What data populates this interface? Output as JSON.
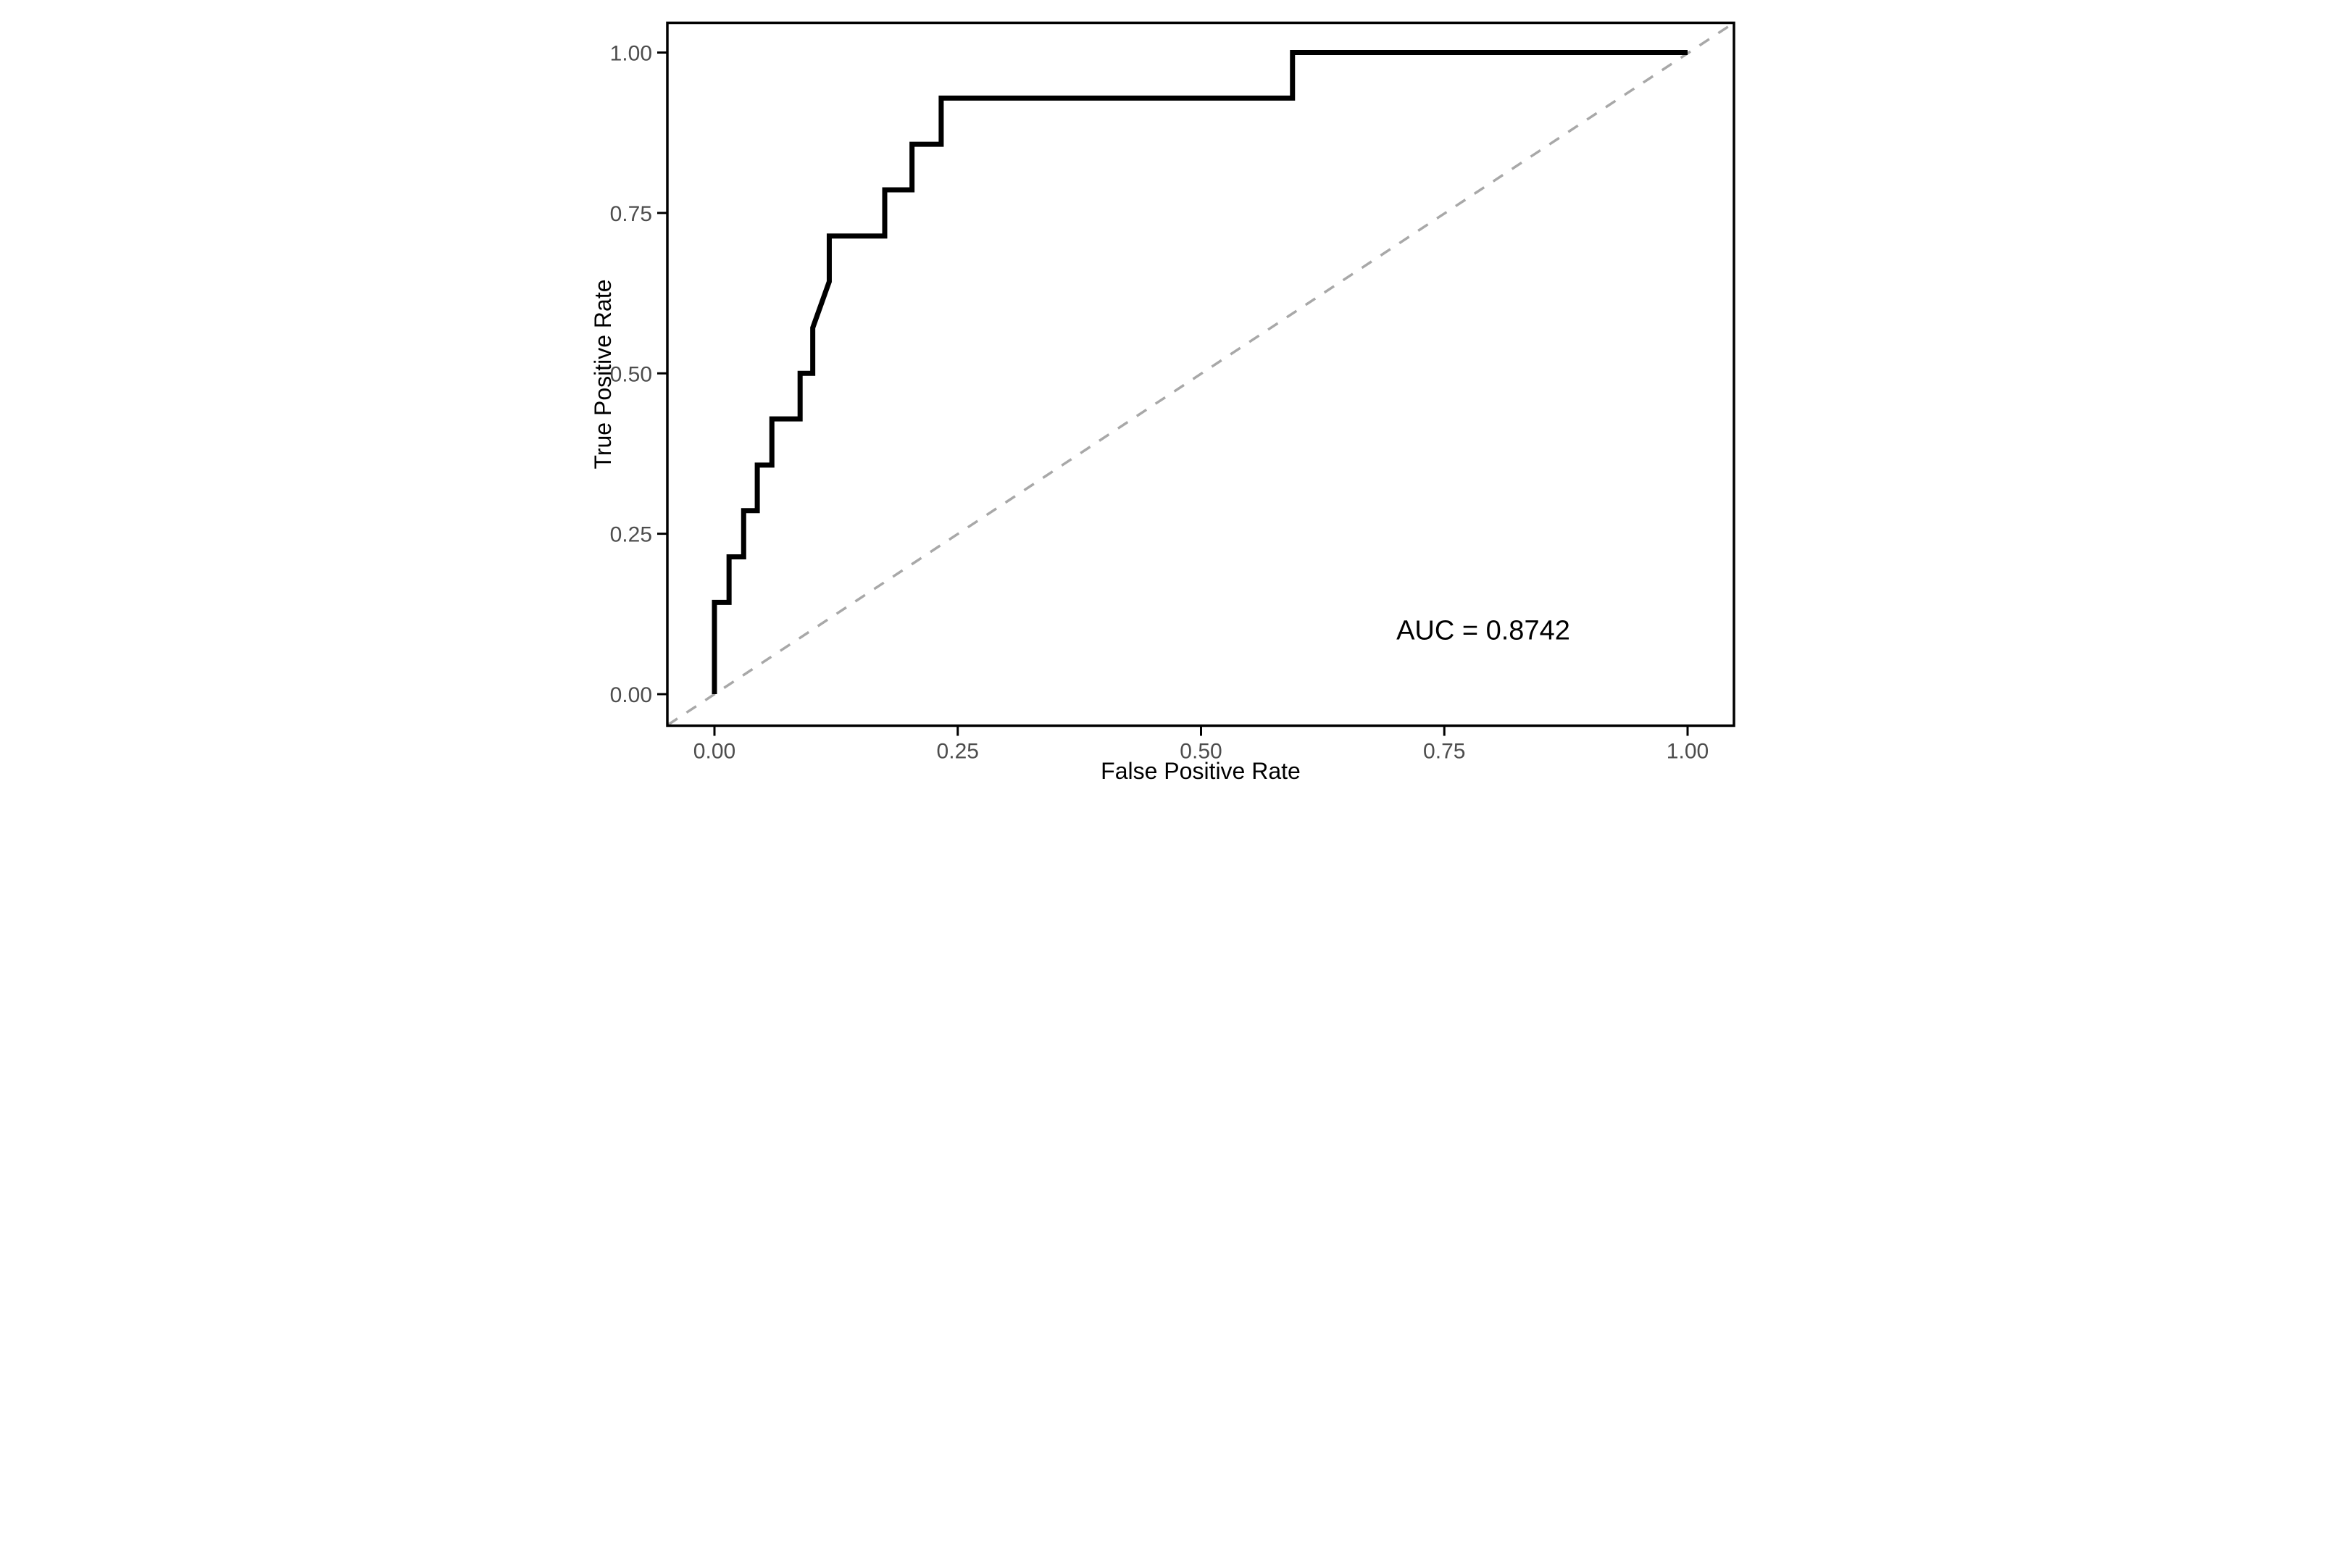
{
  "figure": {
    "background_color": "#ffffff",
    "auc_value": 0.8742
  },
  "colors": {
    "roc_curve": "#000000",
    "reference_line": "#a8a8a8",
    "panel_border": "#000000",
    "tick_mark": "#000000",
    "tick_label": "#4d4d4d",
    "axis_title": "#000000",
    "annotation_text": "#000000"
  },
  "chart_data": {
    "type": "line",
    "title": "",
    "xlabel": "False Positive Rate",
    "ylabel": "True Positive Rate",
    "xlim": [
      0,
      1
    ],
    "ylim": [
      0,
      1
    ],
    "grid": "off",
    "legend": "none",
    "x_ticks": [
      0,
      0.25,
      0.5,
      0.75,
      1
    ],
    "x_tick_labels": [
      "0.00",
      "0.25",
      "0.50",
      "0.75",
      "1.00"
    ],
    "y_ticks": [
      0,
      0.25,
      0.5,
      0.75,
      1
    ],
    "y_tick_labels": [
      "0.00",
      "0.25",
      "0.50",
      "0.75",
      "1.00"
    ],
    "annotation": {
      "text": "AUC = 0.8742",
      "x": 0.79,
      "y": 0.1
    },
    "series": [
      {
        "name": "ROC curve",
        "line_style": "solid",
        "color": "#000000",
        "points": [
          [
            0.0,
            0.0
          ],
          [
            0.0,
            0.143
          ],
          [
            0.015,
            0.143
          ],
          [
            0.015,
            0.214
          ],
          [
            0.03,
            0.214
          ],
          [
            0.03,
            0.286
          ],
          [
            0.044,
            0.286
          ],
          [
            0.044,
            0.357
          ],
          [
            0.059,
            0.357
          ],
          [
            0.059,
            0.429
          ],
          [
            0.088,
            0.429
          ],
          [
            0.088,
            0.5
          ],
          [
            0.101,
            0.5
          ],
          [
            0.101,
            0.571
          ],
          [
            0.118,
            0.643
          ],
          [
            0.118,
            0.714
          ],
          [
            0.175,
            0.714
          ],
          [
            0.175,
            0.786
          ],
          [
            0.203,
            0.786
          ],
          [
            0.203,
            0.857
          ],
          [
            0.233,
            0.857
          ],
          [
            0.233,
            0.929
          ],
          [
            0.594,
            0.929
          ],
          [
            0.594,
            1.0
          ],
          [
            1.0,
            1.0
          ]
        ]
      },
      {
        "name": "Chance reference (identity line)",
        "line_style": "dashed",
        "color": "#a8a8a8",
        "points": [
          [
            -0.048,
            -0.048
          ],
          [
            1.048,
            1.048
          ]
        ]
      }
    ]
  }
}
